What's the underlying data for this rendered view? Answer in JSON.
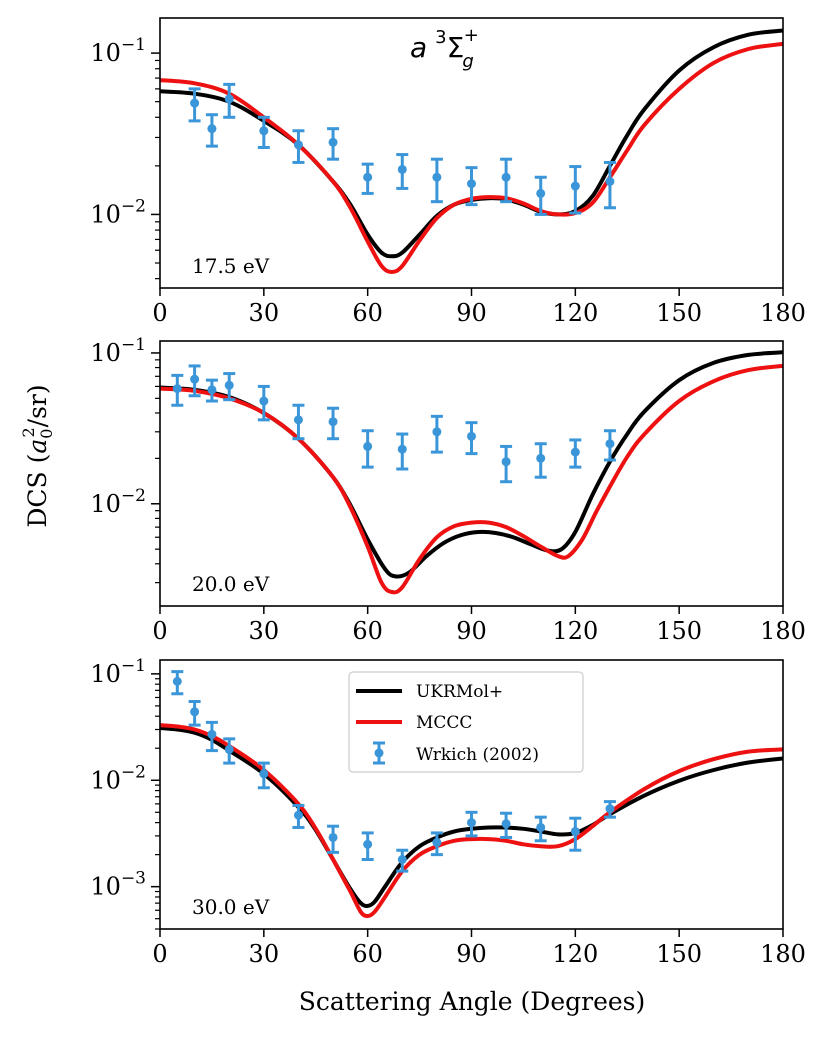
{
  "chart_data": {
    "type": "line",
    "title_parts": {
      "a": "a",
      "sup3": "3",
      "sigma": "Σ",
      "subg": "g",
      "supplus": "+"
    },
    "xlabel": "Scattering Angle (Degrees)",
    "ylabel_parts": {
      "pre": "DCS (",
      "a": "a",
      "sub0": "0",
      "sup2": "2",
      "post": "/sr)"
    },
    "xlim": [
      0,
      180
    ],
    "xticks": [
      "0",
      "30",
      "60",
      "90",
      "120",
      "150",
      "180"
    ],
    "colors": {
      "ukrmol": "#000000",
      "mccc": "#ee1111",
      "wrkich": "#3a96d8"
    },
    "legend": {
      "ukrmol": "UKRMol+",
      "mccc": "MCCC",
      "wrkich": "Wrkich (2002)"
    },
    "panels": [
      {
        "energy_label": "17.5 eV",
        "ylim": [
          0.0035,
          0.165
        ],
        "yticks": [
          {
            "value": 0.1,
            "mant": "10",
            "exp": "−1"
          },
          {
            "value": 0.01,
            "mant": "10",
            "exp": "−2"
          }
        ],
        "series": [
          {
            "name": "UKRMol+",
            "x": [
              0,
              10,
              20,
              30,
              40,
              50,
              55,
              60,
              64,
              67,
              70,
              75,
              80,
              85,
              90,
              95,
              100,
              105,
              110,
              115,
              120,
              125,
              130,
              135,
              140,
              150,
              160,
              170,
              180
            ],
            "y": [
              0.058,
              0.056,
              0.05,
              0.038,
              0.027,
              0.016,
              0.0115,
              0.0075,
              0.0058,
              0.0055,
              0.0058,
              0.0075,
              0.0098,
              0.0115,
              0.0123,
              0.0126,
              0.0124,
              0.0115,
              0.0104,
              0.01,
              0.0105,
              0.013,
              0.02,
              0.031,
              0.045,
              0.078,
              0.109,
              0.13,
              0.138
            ]
          },
          {
            "name": "MCCC",
            "x": [
              0,
              10,
              20,
              30,
              40,
              50,
              55,
              60,
              64,
              67,
              70,
              75,
              80,
              85,
              90,
              95,
              100,
              105,
              110,
              115,
              120,
              125,
              130,
              135,
              140,
              150,
              160,
              170,
              180
            ],
            "y": [
              0.068,
              0.065,
              0.056,
              0.04,
              0.027,
              0.016,
              0.011,
              0.0068,
              0.0048,
              0.0044,
              0.0048,
              0.0069,
              0.0095,
              0.0115,
              0.0125,
              0.0128,
              0.0126,
              0.0117,
              0.0105,
              0.01,
              0.0102,
              0.0118,
              0.017,
              0.025,
              0.036,
              0.06,
              0.087,
              0.106,
              0.114
            ]
          },
          {
            "name": "Wrkich (2002)",
            "x": [
              10,
              15,
              20,
              30,
              40,
              50,
              60,
              70,
              80,
              90,
              100,
              110,
              120,
              130
            ],
            "y": [
              0.049,
              0.034,
              0.052,
              0.033,
              0.027,
              0.028,
              0.017,
              0.019,
              0.017,
              0.0155,
              0.017,
              0.0135,
              0.015,
              0.016
            ],
            "err": [
              0.011,
              0.0075,
              0.012,
              0.007,
              0.006,
              0.006,
              0.0035,
              0.0045,
              0.005,
              0.004,
              0.005,
              0.0035,
              0.0048,
              0.005
            ]
          }
        ]
      },
      {
        "energy_label": "20.0 eV",
        "ylim": [
          0.0021,
          0.12
        ],
        "yticks": [
          {
            "value": 0.1,
            "mant": "10",
            "exp": "−1"
          },
          {
            "value": 0.01,
            "mant": "10",
            "exp": "−2"
          }
        ],
        "series": [
          {
            "name": "UKRMol+",
            "x": [
              0,
              10,
              20,
              30,
              40,
              50,
              55,
              60,
              65,
              68,
              72,
              77,
              82,
              87,
              92,
              97,
              102,
              107,
              112,
              116,
              120,
              125,
              130,
              135,
              140,
              150,
              160,
              170,
              180
            ],
            "y": [
              0.059,
              0.057,
              0.051,
              0.04,
              0.027,
              0.015,
              0.0098,
              0.0058,
              0.0037,
              0.0033,
              0.0035,
              0.0045,
              0.0055,
              0.0062,
              0.0065,
              0.0064,
              0.006,
              0.0054,
              0.0049,
              0.005,
              0.0065,
              0.0115,
              0.019,
              0.029,
              0.041,
              0.066,
              0.086,
              0.097,
              0.101
            ]
          },
          {
            "name": "MCCC",
            "x": [
              0,
              10,
              20,
              30,
              40,
              50,
              55,
              60,
              64,
              67,
              70,
              75,
              80,
              85,
              90,
              95,
              100,
              105,
              110,
              115,
              118,
              122,
              126,
              130,
              135,
              140,
              150,
              160,
              170,
              180
            ],
            "y": [
              0.058,
              0.056,
              0.05,
              0.04,
              0.027,
              0.015,
              0.0095,
              0.0052,
              0.003,
              0.0026,
              0.0028,
              0.0043,
              0.006,
              0.0071,
              0.0075,
              0.0075,
              0.007,
              0.0061,
              0.0052,
              0.0045,
              0.0045,
              0.0058,
              0.0088,
              0.013,
              0.0205,
              0.029,
              0.048,
              0.065,
              0.077,
              0.082
            ]
          },
          {
            "name": "Wrkich (2002)",
            "x": [
              5,
              10,
              15,
              20,
              30,
              40,
              50,
              60,
              70,
              80,
              90,
              100,
              110,
              120,
              130
            ],
            "y": [
              0.058,
              0.067,
              0.057,
              0.061,
              0.048,
              0.036,
              0.035,
              0.024,
              0.023,
              0.03,
              0.028,
              0.019,
              0.02,
              0.022,
              0.025
            ],
            "err": [
              0.013,
              0.015,
              0.009,
              0.012,
              0.012,
              0.009,
              0.008,
              0.0065,
              0.006,
              0.008,
              0.0065,
              0.005,
              0.005,
              0.0045,
              0.0055
            ]
          }
        ]
      },
      {
        "energy_label": "30.0 eV",
        "ylim": [
          0.0004,
          0.135
        ],
        "yticks": [
          {
            "value": 0.1,
            "mant": "10",
            "exp": "−1"
          },
          {
            "value": 0.01,
            "mant": "10",
            "exp": "−2"
          },
          {
            "value": 0.001,
            "mant": "10",
            "exp": "−3"
          }
        ],
        "series": [
          {
            "name": "UKRMol+",
            "x": [
              0,
              5,
              10,
              15,
              20,
              30,
              40,
              45,
              50,
              55,
              58,
              60,
              62,
              65,
              70,
              75,
              80,
              85,
              90,
              95,
              100,
              105,
              110,
              115,
              120,
              125,
              130,
              140,
              150,
              160,
              170,
              180
            ],
            "y": [
              0.031,
              0.03,
              0.028,
              0.024,
              0.019,
              0.0115,
              0.0056,
              0.0034,
              0.0018,
              0.00095,
              0.0007,
              0.00066,
              0.00072,
              0.001,
              0.0017,
              0.0024,
              0.0029,
              0.0033,
              0.0035,
              0.0036,
              0.0036,
              0.0035,
              0.0033,
              0.0031,
              0.0032,
              0.0038,
              0.0048,
              0.0072,
              0.0099,
              0.0125,
              0.0147,
              0.016
            ]
          },
          {
            "name": "MCCC",
            "x": [
              0,
              5,
              10,
              15,
              20,
              30,
              40,
              45,
              50,
              55,
              58,
              60,
              62,
              65,
              70,
              75,
              80,
              85,
              90,
              95,
              100,
              105,
              110,
              115,
              120,
              125,
              130,
              140,
              150,
              160,
              170,
              180
            ],
            "y": [
              0.033,
              0.032,
              0.03,
              0.026,
              0.021,
              0.0125,
              0.006,
              0.0035,
              0.0018,
              0.0009,
              0.00058,
              0.00053,
              0.00058,
              0.0008,
              0.0014,
              0.002,
              0.0024,
              0.0027,
              0.0028,
              0.0028,
              0.0027,
              0.0025,
              0.0024,
              0.0024,
              0.0028,
              0.0037,
              0.005,
              0.0083,
              0.0122,
              0.0158,
              0.0186,
              0.0195
            ]
          },
          {
            "name": "Wrkich (2002)",
            "x": [
              5,
              10,
              15,
              20,
              30,
              40,
              50,
              60,
              70,
              80,
              90,
              100,
              110,
              120,
              130
            ],
            "y": [
              0.085,
              0.044,
              0.027,
              0.0195,
              0.0115,
              0.0047,
              0.0029,
              0.0025,
              0.0018,
              0.0026,
              0.004,
              0.0039,
              0.0036,
              0.0033,
              0.0054
            ],
            "err": [
              0.02,
              0.011,
              0.008,
              0.005,
              0.003,
              0.0011,
              0.0008,
              0.0007,
              0.0004,
              0.0006,
              0.001,
              0.001,
              0.0009,
              0.0011,
              0.0009
            ]
          }
        ]
      }
    ]
  }
}
